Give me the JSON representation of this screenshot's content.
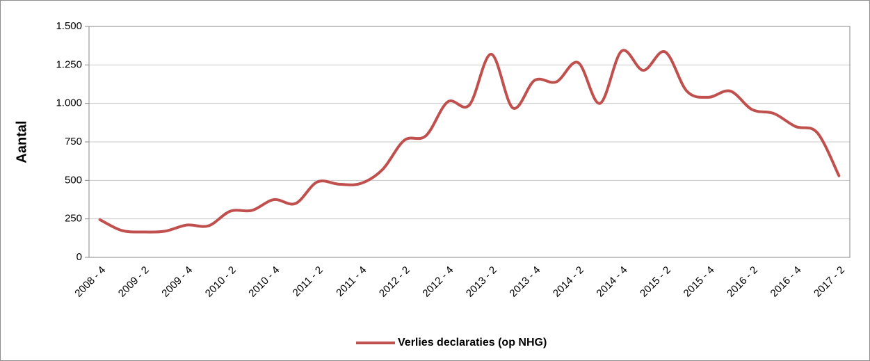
{
  "chart_data": {
    "type": "line",
    "y_label": "Aantal",
    "categories": [
      "2008 - 4",
      null,
      "2009 - 2",
      null,
      "2009 - 4",
      null,
      "2010 - 2",
      null,
      "2010 - 4",
      null,
      "2011 - 2",
      null,
      "2011 - 4",
      null,
      "2012 - 2",
      null,
      "2012 - 4",
      null,
      "2013 - 2",
      null,
      "2013 - 4",
      null,
      "2014 - 2",
      null,
      "2014 - 4",
      null,
      "2015 - 2",
      null,
      "2015 - 4",
      null,
      "2016 - 2",
      null,
      "2016 - 4",
      null,
      "2017 - 2"
    ],
    "series": [
      {
        "name": "Verlies declaraties (op NHG)",
        "color": "#c0504d",
        "values": [
          245,
          175,
          165,
          170,
          210,
          205,
          300,
          305,
          375,
          350,
          490,
          475,
          480,
          570,
          760,
          790,
          1010,
          990,
          1320,
          970,
          1150,
          1140,
          1265,
          1000,
          1340,
          1215,
          1335,
          1080,
          1040,
          1080,
          960,
          935,
          850,
          810,
          530
        ]
      }
    ],
    "ylim": [
      0,
      1500
    ],
    "yticks": [
      0,
      250,
      500,
      750,
      {
        "value": 1000,
        "label": "1.000"
      },
      {
        "value": 1250,
        "label": "1.250"
      },
      {
        "value": 1500,
        "label": "1.500"
      }
    ],
    "grid": true,
    "legend": "bottom"
  }
}
